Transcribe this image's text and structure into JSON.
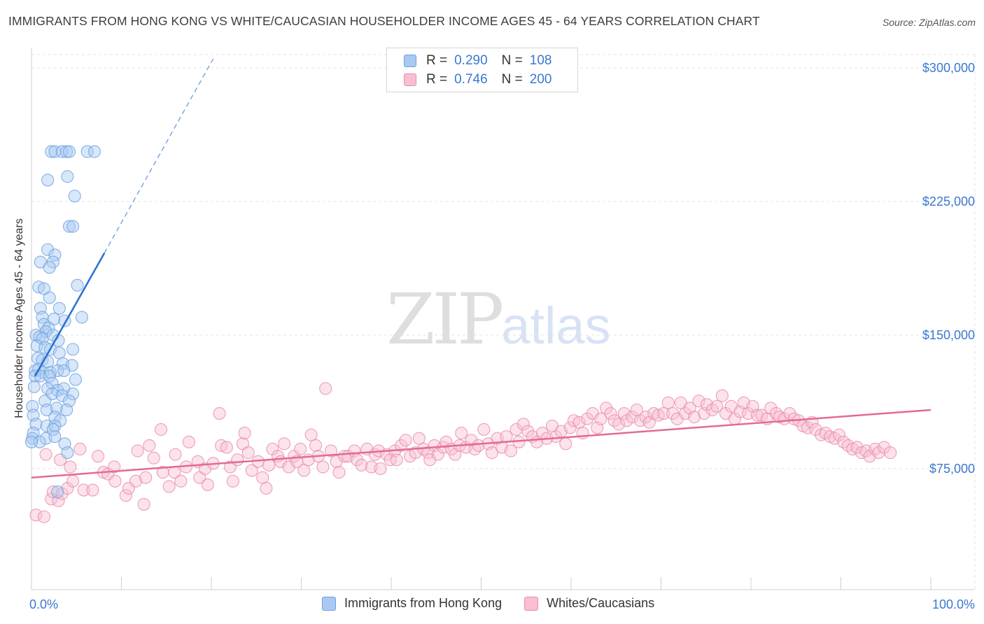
{
  "header": {
    "title": "IMMIGRANTS FROM HONG KONG VS WHITE/CAUCASIAN HOUSEHOLDER INCOME AGES 45 - 64 YEARS CORRELATION CHART",
    "source": "Source: ZipAtlas.com"
  },
  "watermark": {
    "zip": "ZIP",
    "atlas": "atlas"
  },
  "legend_top": [
    {
      "r_label": "R =",
      "r_value": "0.290",
      "n_label": "N =",
      "n_value": "108",
      "color": "#a9c9f2",
      "border": "#6b9fe0"
    },
    {
      "r_label": "R =",
      "r_value": "0.746",
      "n_label": "N =",
      "n_value": "200",
      "color": "#f8bfd2",
      "border": "#e98aa9"
    }
  ],
  "legend_bottom": [
    {
      "label": "Immigrants from Hong Kong",
      "color": "#a9c9f2",
      "border": "#6b9fe0"
    },
    {
      "label": "Whites/Caucasians",
      "color": "#f8bfd2",
      "border": "#e98aa9"
    }
  ],
  "chart_data": {
    "type": "scatter",
    "title": "IMMIGRANTS FROM HONG KONG VS WHITE/CAUCASIAN HOUSEHOLDER INCOME AGES 45 - 64 YEARS CORRELATION CHART",
    "xlabel": "",
    "ylabel": "Householder Income Ages 45 - 64 years",
    "x_unit": "percent",
    "xlim": [
      0,
      100
    ],
    "ylim": [
      10000,
      310000
    ],
    "x_tick_labels": [
      "0.0%",
      "100.0%"
    ],
    "y_ticks": [
      75000,
      150000,
      225000,
      300000
    ],
    "y_tick_labels": [
      "$75,000",
      "$150,000",
      "$225,000",
      "$300,000"
    ],
    "grid": true,
    "legend_position": "top-center",
    "colors": {
      "blue_point": "#a9c9f2",
      "blue_edge": "#6b9fe0",
      "blue_line": "#2a6fd1",
      "pink_point": "#f8bfd2",
      "pink_edge": "#e98aa9",
      "pink_line": "#e36a96",
      "axis_text": "#3b78d0"
    },
    "series": [
      {
        "name": "Immigrants from Hong Kong",
        "r": 0.29,
        "n": 108,
        "trend_solid": {
          "x": [
            0.4,
            8.1
          ],
          "y": [
            127000,
            196000
          ]
        },
        "trend_dashed": {
          "x": [
            8.1,
            20.2
          ],
          "y": [
            196000,
            305000
          ]
        },
        "points": [
          [
            2.2,
            253000
          ],
          [
            2.6,
            253000
          ],
          [
            3.4,
            253000
          ],
          [
            3.9,
            253000
          ],
          [
            4.2,
            253000
          ],
          [
            6.2,
            253000
          ],
          [
            7.0,
            253000
          ],
          [
            4.0,
            239000
          ],
          [
            1.8,
            237000
          ],
          [
            4.8,
            228000
          ],
          [
            4.2,
            211000
          ],
          [
            4.6,
            211000
          ],
          [
            1.8,
            198000
          ],
          [
            2.6,
            195000
          ],
          [
            1.0,
            191000
          ],
          [
            2.4,
            191000
          ],
          [
            2.0,
            188000
          ],
          [
            0.8,
            177000
          ],
          [
            1.4,
            176000
          ],
          [
            5.1,
            178000
          ],
          [
            2.0,
            171000
          ],
          [
            1.0,
            165000
          ],
          [
            3.1,
            165000
          ],
          [
            1.2,
            160000
          ],
          [
            2.5,
            159000
          ],
          [
            3.7,
            158000
          ],
          [
            5.6,
            160000
          ],
          [
            1.4,
            156000
          ],
          [
            1.9,
            154000
          ],
          [
            1.6,
            152000
          ],
          [
            0.5,
            150000
          ],
          [
            0.9,
            149000
          ],
          [
            1.2,
            148000
          ],
          [
            2.4,
            150000
          ],
          [
            3.0,
            147000
          ],
          [
            0.6,
            144000
          ],
          [
            1.5,
            143000
          ],
          [
            2.1,
            142000
          ],
          [
            3.1,
            140000
          ],
          [
            4.6,
            142000
          ],
          [
            0.7,
            137000
          ],
          [
            1.2,
            136000
          ],
          [
            1.8,
            135000
          ],
          [
            3.5,
            134000
          ],
          [
            4.5,
            133000
          ],
          [
            0.4,
            130000
          ],
          [
            0.8,
            131000
          ],
          [
            1.3,
            129000
          ],
          [
            2.1,
            129000
          ],
          [
            2.9,
            130000
          ],
          [
            3.6,
            130000
          ],
          [
            0.4,
            127000
          ],
          [
            1.0,
            127000
          ],
          [
            2.0,
            127000
          ],
          [
            4.9,
            125000
          ],
          [
            2.3,
            123000
          ],
          [
            1.8,
            120000
          ],
          [
            2.9,
            119000
          ],
          [
            3.6,
            120000
          ],
          [
            0.3,
            121000
          ],
          [
            2.3,
            117000
          ],
          [
            3.4,
            116000
          ],
          [
            4.6,
            117000
          ],
          [
            1.5,
            113000
          ],
          [
            4.2,
            113000
          ],
          [
            0.1,
            110000
          ],
          [
            1.7,
            108000
          ],
          [
            2.8,
            109000
          ],
          [
            3.9,
            108000
          ],
          [
            0.2,
            105000
          ],
          [
            2.6,
            104000
          ],
          [
            3.2,
            102000
          ],
          [
            0.5,
            100000
          ],
          [
            1.7,
            99000
          ],
          [
            2.6,
            99000
          ],
          [
            2.4,
            97000
          ],
          [
            0.2,
            95000
          ],
          [
            0.1,
            92000
          ],
          [
            1.6,
            92000
          ],
          [
            2.6,
            93000
          ],
          [
            0.9,
            90000
          ],
          [
            3.7,
            89000
          ],
          [
            0.0,
            90000
          ],
          [
            4.0,
            84000
          ],
          [
            2.9,
            62000
          ]
        ]
      },
      {
        "name": "Whites/Caucasians",
        "r": 0.746,
        "n": 200,
        "trend_solid": {
          "x": [
            0,
            100
          ],
          "y": [
            70000,
            108000
          ]
        },
        "points": [
          [
            0.5,
            49000
          ],
          [
            1.4,
            48000
          ],
          [
            2.2,
            58000
          ],
          [
            2.4,
            62000
          ],
          [
            3.0,
            57000
          ],
          [
            3.4,
            61000
          ],
          [
            4.0,
            64000
          ],
          [
            4.6,
            68000
          ],
          [
            5.8,
            63000
          ],
          [
            6.8,
            63000
          ],
          [
            1.6,
            83000
          ],
          [
            3.2,
            80000
          ],
          [
            4.3,
            76000
          ],
          [
            5.4,
            86000
          ],
          [
            7.4,
            82000
          ],
          [
            8.0,
            73000
          ],
          [
            8.5,
            72000
          ],
          [
            9.2,
            76000
          ],
          [
            9.3,
            68000
          ],
          [
            10.5,
            60000
          ],
          [
            10.8,
            64000
          ],
          [
            11.6,
            68000
          ],
          [
            11.8,
            85000
          ],
          [
            12.5,
            55000
          ],
          [
            12.7,
            70000
          ],
          [
            13.1,
            88000
          ],
          [
            13.6,
            81000
          ],
          [
            14.4,
            97000
          ],
          [
            14.6,
            73000
          ],
          [
            15.3,
            65000
          ],
          [
            15.9,
            73000
          ],
          [
            16.0,
            83000
          ],
          [
            16.6,
            68000
          ],
          [
            17.2,
            76000
          ],
          [
            17.5,
            90000
          ],
          [
            18.5,
            79000
          ],
          [
            18.7,
            70000
          ],
          [
            19.3,
            75000
          ],
          [
            19.6,
            66000
          ],
          [
            20.2,
            78000
          ],
          [
            20.9,
            106000
          ],
          [
            21.1,
            88000
          ],
          [
            21.7,
            87000
          ],
          [
            22.1,
            76000
          ],
          [
            22.4,
            68000
          ],
          [
            22.9,
            80000
          ],
          [
            23.5,
            89000
          ],
          [
            23.7,
            95000
          ],
          [
            24.1,
            84000
          ],
          [
            24.5,
            74000
          ],
          [
            25.2,
            79000
          ],
          [
            25.7,
            70000
          ],
          [
            26.1,
            64000
          ],
          [
            26.4,
            77000
          ],
          [
            26.8,
            86000
          ],
          [
            27.4,
            82000
          ],
          [
            27.7,
            79000
          ],
          [
            28.1,
            89000
          ],
          [
            28.6,
            76000
          ],
          [
            29.2,
            82000
          ],
          [
            29.5,
            79000
          ],
          [
            29.9,
            86000
          ],
          [
            30.3,
            74000
          ],
          [
            30.8,
            80000
          ],
          [
            31.1,
            94000
          ],
          [
            31.6,
            88000
          ],
          [
            31.9,
            82000
          ],
          [
            32.4,
            76000
          ],
          [
            32.7,
            120000
          ],
          [
            33.3,
            85000
          ],
          [
            33.9,
            79000
          ],
          [
            34.2,
            73000
          ],
          [
            34.8,
            82000
          ],
          [
            35.2,
            82000
          ],
          [
            35.9,
            85000
          ],
          [
            36.2,
            80000
          ],
          [
            36.7,
            77000
          ],
          [
            37.3,
            86000
          ],
          [
            37.8,
            76000
          ],
          [
            38.2,
            83000
          ],
          [
            38.6,
            85000
          ],
          [
            38.8,
            75000
          ],
          [
            39.5,
            83000
          ],
          [
            39.9,
            80000
          ],
          [
            40.4,
            85000
          ],
          [
            40.6,
            80000
          ],
          [
            41.1,
            88000
          ],
          [
            41.6,
            91000
          ],
          [
            42.1,
            82000
          ],
          [
            42.7,
            84000
          ],
          [
            43.1,
            92000
          ],
          [
            43.6,
            86000
          ],
          [
            44.1,
            84000
          ],
          [
            44.3,
            80000
          ],
          [
            44.8,
            88000
          ],
          [
            45.2,
            83000
          ],
          [
            45.8,
            87000
          ],
          [
            46.1,
            90000
          ],
          [
            46.7,
            86000
          ],
          [
            47.1,
            83000
          ],
          [
            47.6,
            88000
          ],
          [
            47.8,
            95000
          ],
          [
            48.3,
            87000
          ],
          [
            48.9,
            91000
          ],
          [
            49.3,
            86000
          ],
          [
            49.7,
            88000
          ],
          [
            50.3,
            97000
          ],
          [
            50.8,
            89000
          ],
          [
            51.2,
            84000
          ],
          [
            51.8,
            92000
          ],
          [
            52.3,
            87000
          ],
          [
            52.8,
            93000
          ],
          [
            53.3,
            85000
          ],
          [
            53.9,
            97000
          ],
          [
            54.2,
            90000
          ],
          [
            54.7,
            100000
          ],
          [
            55.2,
            96000
          ],
          [
            55.7,
            93000
          ],
          [
            56.2,
            90000
          ],
          [
            56.8,
            95000
          ],
          [
            57.3,
            92000
          ],
          [
            57.9,
            99000
          ],
          [
            58.3,
            93000
          ],
          [
            58.9,
            96000
          ],
          [
            59.4,
            89000
          ],
          [
            59.9,
            98000
          ],
          [
            60.3,
            102000
          ],
          [
            60.9,
            101000
          ],
          [
            61.3,
            95000
          ],
          [
            61.8,
            103000
          ],
          [
            62.4,
            106000
          ],
          [
            62.9,
            98000
          ],
          [
            63.3,
            103000
          ],
          [
            63.9,
            109000
          ],
          [
            64.4,
            106000
          ],
          [
            64.8,
            102000
          ],
          [
            65.3,
            100000
          ],
          [
            65.9,
            106000
          ],
          [
            66.2,
            102000
          ],
          [
            66.8,
            104000
          ],
          [
            67.3,
            108000
          ],
          [
            67.7,
            102000
          ],
          [
            68.3,
            104000
          ],
          [
            68.7,
            101000
          ],
          [
            69.2,
            106000
          ],
          [
            69.7,
            105000
          ],
          [
            70.3,
            106000
          ],
          [
            70.8,
            112000
          ],
          [
            71.3,
            106000
          ],
          [
            71.8,
            103000
          ],
          [
            72.2,
            112000
          ],
          [
            72.7,
            106000
          ],
          [
            73.2,
            109000
          ],
          [
            73.7,
            104000
          ],
          [
            74.2,
            113000
          ],
          [
            74.8,
            106000
          ],
          [
            75.1,
            111000
          ],
          [
            75.7,
            108000
          ],
          [
            76.2,
            110000
          ],
          [
            76.8,
            116000
          ],
          [
            77.2,
            106000
          ],
          [
            77.8,
            110000
          ],
          [
            78.2,
            103000
          ],
          [
            78.8,
            107000
          ],
          [
            79.2,
            112000
          ],
          [
            79.7,
            106000
          ],
          [
            80.2,
            110000
          ],
          [
            80.7,
            105000
          ],
          [
            81.2,
            105000
          ],
          [
            81.8,
            103000
          ],
          [
            82.2,
            109000
          ],
          [
            82.8,
            106000
          ],
          [
            83.2,
            104000
          ],
          [
            83.7,
            103000
          ],
          [
            84.3,
            106000
          ],
          [
            84.8,
            103000
          ],
          [
            85.3,
            102000
          ],
          [
            85.8,
            99000
          ],
          [
            86.3,
            98000
          ],
          [
            86.8,
            101000
          ],
          [
            87.2,
            97000
          ],
          [
            87.8,
            94000
          ],
          [
            88.3,
            95000
          ],
          [
            88.8,
            93000
          ],
          [
            89.3,
            92000
          ],
          [
            89.8,
            94000
          ],
          [
            90.3,
            90000
          ],
          [
            90.8,
            88000
          ],
          [
            91.3,
            86000
          ],
          [
            91.8,
            87000
          ],
          [
            92.3,
            84000
          ],
          [
            92.8,
            85000
          ],
          [
            93.2,
            82000
          ],
          [
            93.8,
            86000
          ],
          [
            94.2,
            84000
          ],
          [
            94.8,
            87000
          ],
          [
            95.5,
            84000
          ]
        ]
      }
    ]
  }
}
